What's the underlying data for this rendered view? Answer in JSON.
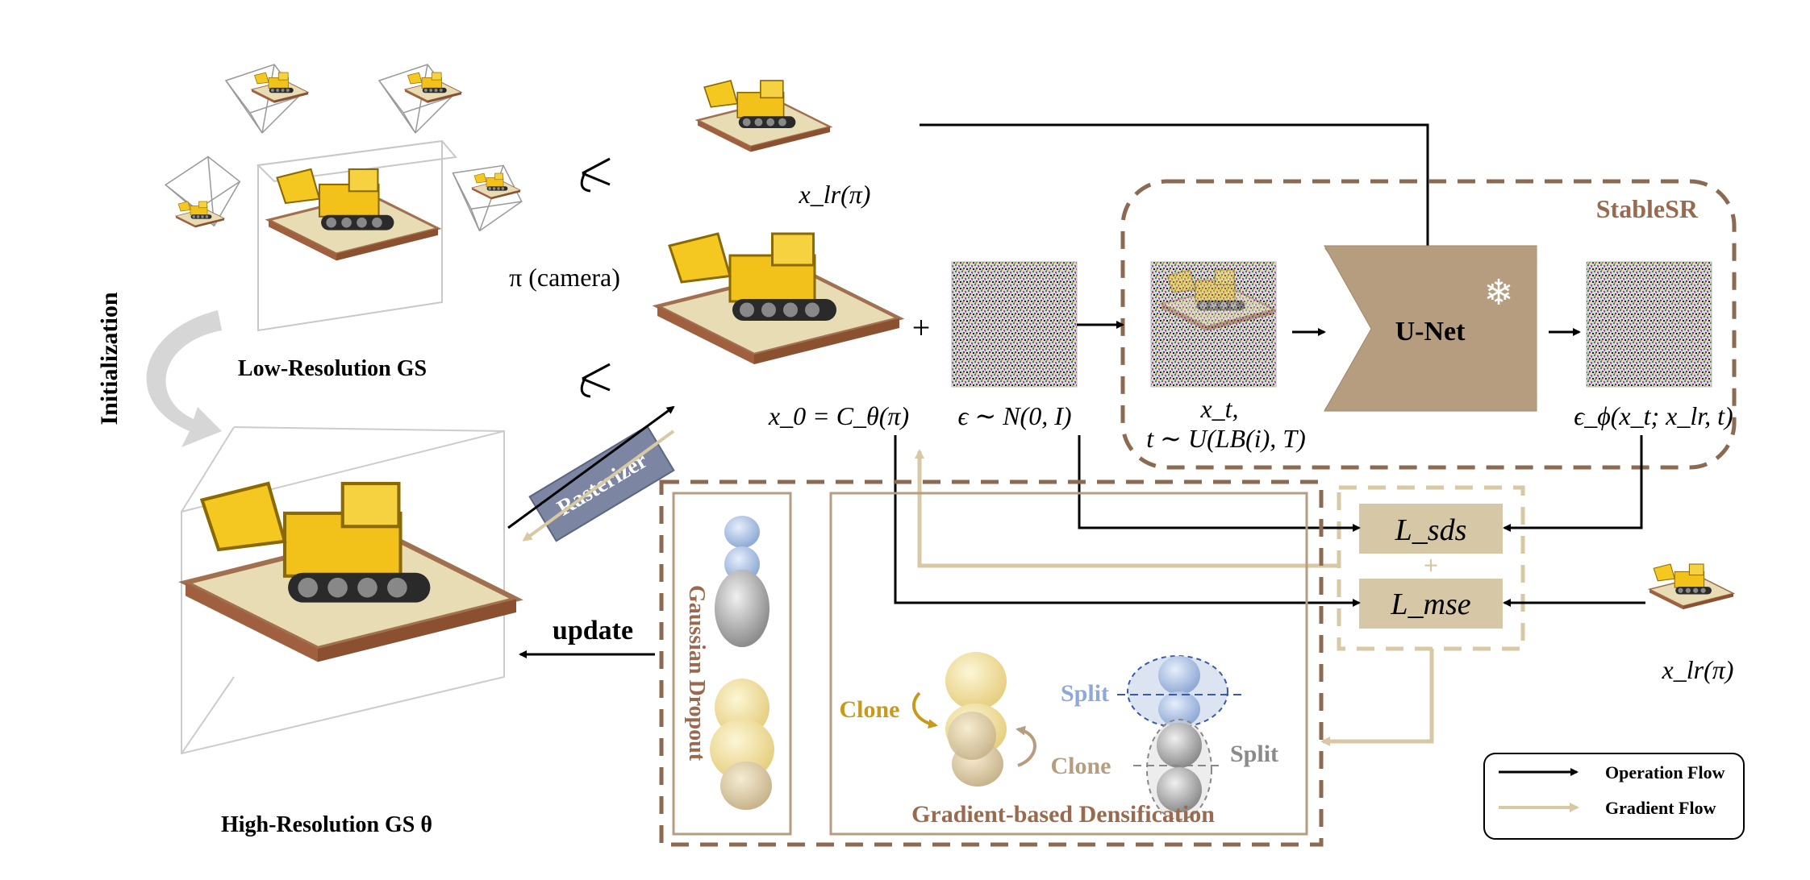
{
  "labels": {
    "initialization": "Initialization",
    "low_res_gs": "Low-Resolution GS",
    "high_res_gs": "High-Resolution GS θ",
    "rasterizer": "Rasterizer",
    "camera": "π (camera)",
    "x_lr_top": "x_lr(π)",
    "x_lr_right": "x_lr(π)",
    "x0": "x_0 = C_θ(π)",
    "plus_sign": "+",
    "epsilon": "ϵ ∼ N(0, I)",
    "xt_line1": "x_t,",
    "xt_line2": "t ∼ U(LB(i), T)",
    "eps_phi": "ϵ_ϕ(x_t; x_lr, t)",
    "stablesr": "StableSR",
    "unet": "U-Net",
    "snowflake": "❄",
    "l_sds": "L_sds",
    "l_mse": "L_mse",
    "loss_plus": "+",
    "update": "update",
    "gaussian_dropout": "Gaussian Dropout",
    "clone_left": "Clone",
    "clone_right": "Clone",
    "split_top": "Split",
    "split_bottom": "Split",
    "densification": "Gradient-based Densification"
  },
  "legend": {
    "operation_flow": "Operation Flow",
    "gradient_flow": "Gradient Flow"
  },
  "colors": {
    "brown_dash": "#8c6a52",
    "unet_fill": "#b79d80",
    "loss_fill": "#d6c8a6",
    "gradient": "#d8c9a4",
    "rasterizer_fill": "#7c86a3",
    "stablesr_text": "#9a6a4e",
    "clone_gold": "#c79a1c",
    "split_blue": "#8fa9d6",
    "split_gray": "#8a8a8a",
    "densification_text": "#9a6a4e"
  },
  "icons": [
    "eye-icon",
    "snowflake-icon",
    "camera-frustum-icon",
    "excavator-image",
    "noise-image"
  ]
}
